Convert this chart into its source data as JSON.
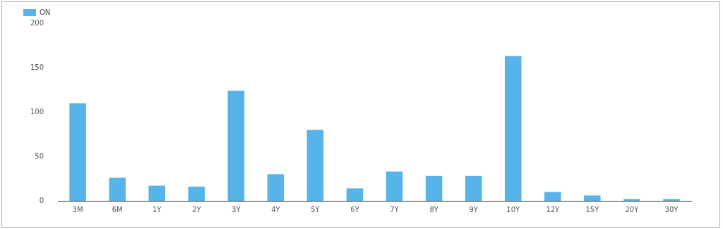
{
  "chart_data": {
    "type": "bar",
    "categories": [
      "3M",
      "6M",
      "1Y",
      "2Y",
      "3Y",
      "4Y",
      "5Y",
      "6Y",
      "7Y",
      "8Y",
      "9Y",
      "10Y",
      "12Y",
      "15Y",
      "20Y",
      "30Y"
    ],
    "series": [
      {
        "name": "ON",
        "color": "#56b4e9",
        "values": [
          110,
          26,
          17,
          16,
          124,
          30,
          80,
          14,
          33,
          28,
          28,
          163,
          10,
          6,
          2,
          2
        ]
      }
    ],
    "ylim": [
      0,
      200
    ],
    "yticks": [
      0,
      50,
      100,
      150,
      200
    ],
    "grid": false,
    "legend": "top left"
  }
}
